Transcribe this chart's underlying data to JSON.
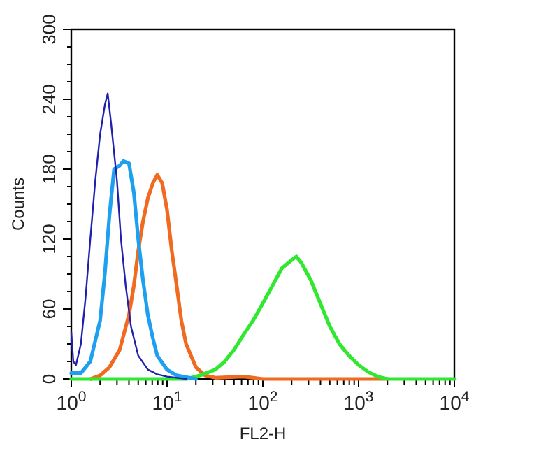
{
  "chart_data": {
    "type": "line",
    "xlabel": "FL2-H",
    "ylabel": "Counts",
    "log": "x",
    "xlim": [
      1,
      10000
    ],
    "ylim": [
      0,
      300
    ],
    "xticks": [
      {
        "value": 1,
        "label": "10$^{0}$"
      },
      {
        "value": 2,
        "label": null
      },
      {
        "value": 3,
        "label": null
      },
      {
        "value": 4,
        "label": null
      },
      {
        "value": 5,
        "label": null
      },
      {
        "value": 6,
        "label": null
      },
      {
        "value": 7,
        "label": null
      },
      {
        "value": 8,
        "label": null
      },
      {
        "value": 9,
        "label": null
      },
      {
        "value": 10,
        "label": "10$^{1}$"
      },
      {
        "value": 20,
        "label": null
      },
      {
        "value": 30,
        "label": null
      },
      {
        "value": 40,
        "label": null
      },
      {
        "value": 50,
        "label": null
      },
      {
        "value": 60,
        "label": null
      },
      {
        "value": 70,
        "label": null
      },
      {
        "value": 80,
        "label": null
      },
      {
        "value": 90,
        "label": null
      },
      {
        "value": 100,
        "label": "10$^{2}$"
      },
      {
        "value": 200,
        "label": null
      },
      {
        "value": 300,
        "label": null
      },
      {
        "value": 400,
        "label": null
      },
      {
        "value": 500,
        "label": null
      },
      {
        "value": 600,
        "label": null
      },
      {
        "value": 700,
        "label": null
      },
      {
        "value": 800,
        "label": null
      },
      {
        "value": 900,
        "label": null
      },
      {
        "value": 1000,
        "label": "10$^{3}$"
      },
      {
        "value": 2000,
        "label": null
      },
      {
        "value": 3000,
        "label": null
      },
      {
        "value": 4000,
        "label": null
      },
      {
        "value": 5000,
        "label": null
      },
      {
        "value": 6000,
        "label": null
      },
      {
        "value": 7000,
        "label": null
      },
      {
        "value": 8000,
        "label": null
      },
      {
        "value": 9000,
        "label": null
      },
      {
        "value": 10000,
        "label": "10$^{4}$"
      }
    ],
    "yticks": [
      0,
      {
        "value": 15,
        "label": null
      },
      {
        "value": 30,
        "label": null
      },
      {
        "value": 45,
        "label": null
      },
      60,
      {
        "value": 75,
        "label": null
      },
      {
        "value": 90,
        "label": null
      },
      {
        "value": 105,
        "label": null
      },
      120,
      {
        "value": 135,
        "label": null
      },
      {
        "value": 150,
        "label": null
      },
      {
        "value": 165,
        "label": null
      },
      180,
      {
        "value": 195,
        "label": null
      },
      {
        "value": 210,
        "label": null
      },
      {
        "value": 225,
        "label": null
      },
      240,
      {
        "value": 255,
        "label": null
      },
      {
        "value": 270,
        "label": null
      },
      {
        "value": 285,
        "label": null
      },
      300
    ],
    "grid": false,
    "marker": "none",
    "line_style": "solid",
    "series": [
      {
        "color": "#f06a20",
        "x": [
          1.6,
          2,
          2.5,
          3.2,
          4,
          4.5,
          5,
          5.6,
          6.3,
          7.1,
          7.9,
          8.9,
          10,
          11.2,
          12.6,
          14.1,
          15.8,
          20,
          25,
          32,
          63,
          100,
          1000,
          2000
        ],
        "values": [
          0,
          3,
          10,
          25,
          55,
          80,
          110,
          135,
          155,
          168,
          175,
          168,
          145,
          110,
          80,
          50,
          30,
          10,
          3,
          1,
          2,
          0,
          0,
          0
        ]
      },
      {
        "color": "#30e830",
        "x": [
          1,
          10,
          16,
          22,
          32,
          40,
          50,
          63,
          79,
          100,
          126,
          158,
          200,
          224,
          251,
          316,
          398,
          501,
          631,
          794,
          1000,
          1259,
          1585,
          2000,
          10000
        ],
        "values": [
          0,
          0,
          0,
          3,
          8,
          15,
          25,
          38,
          50,
          65,
          80,
          95,
          102,
          105,
          100,
          85,
          65,
          45,
          30,
          20,
          12,
          6,
          2,
          0,
          0
        ]
      },
      {
        "color": "#1ea0f0",
        "x": [
          1,
          1.26,
          1.58,
          2,
          2.24,
          2.5,
          2.8,
          3.2,
          3.5,
          4,
          4.5,
          5,
          5.6,
          6.3,
          7.1,
          7.9,
          10,
          12.6,
          20
        ],
        "values": [
          5,
          5,
          15,
          50,
          90,
          140,
          180,
          183,
          187,
          185,
          160,
          120,
          85,
          55,
          35,
          20,
          8,
          3,
          0
        ]
      },
      {
        "color": "#2020b0",
        "x": [
          1,
          1.05,
          1.12,
          1.26,
          1.41,
          1.58,
          1.78,
          2,
          2.24,
          2.4,
          2.6,
          3,
          3.3,
          3.7,
          4.2,
          5,
          6.3,
          7.9,
          10,
          16
        ],
        "values": [
          40,
          15,
          12,
          30,
          70,
          120,
          170,
          210,
          235,
          245,
          220,
          170,
          120,
          80,
          45,
          20,
          8,
          4,
          2,
          0
        ]
      }
    ]
  }
}
